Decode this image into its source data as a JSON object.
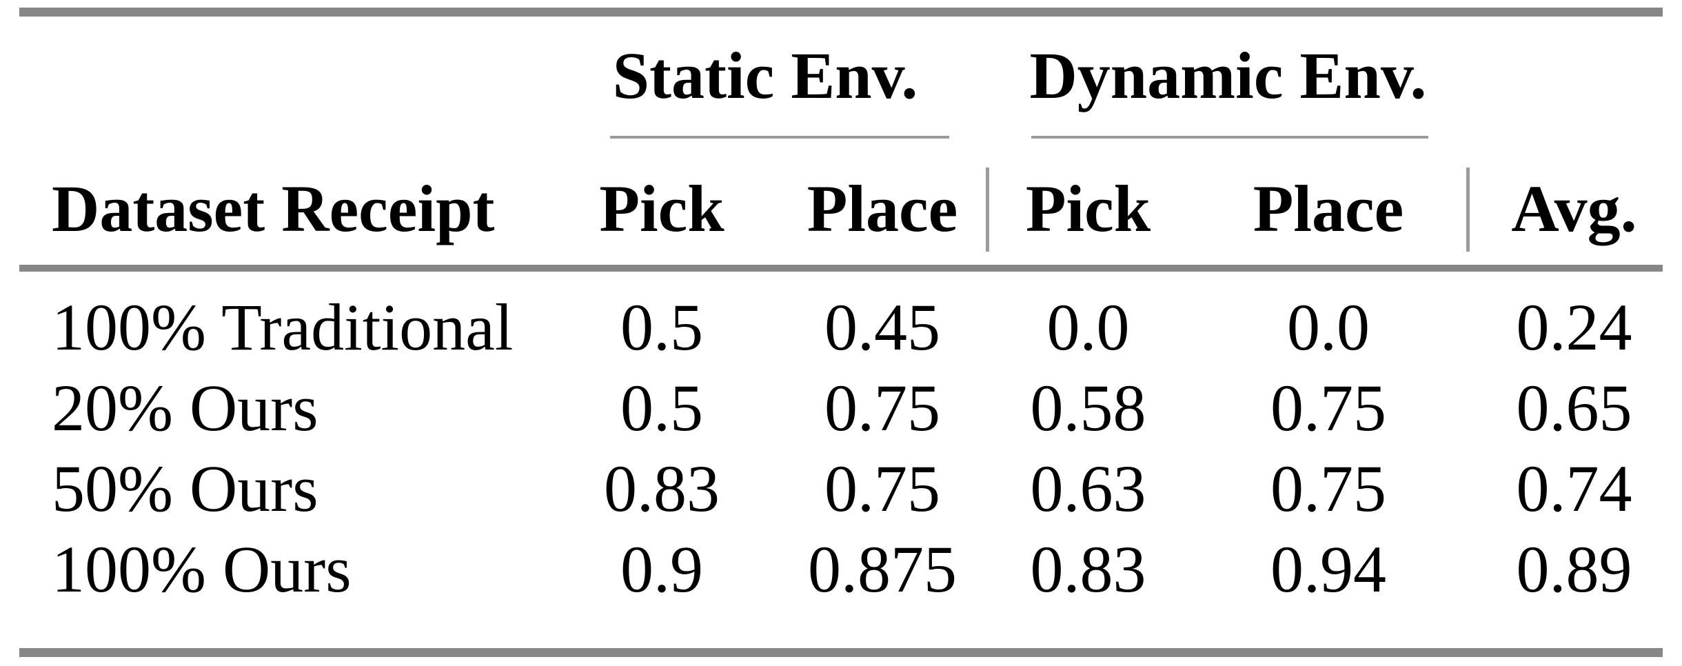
{
  "header": {
    "dataset": "Dataset Receipt",
    "static_group": "Static Env.",
    "dynamic_group": "Dynamic Env.",
    "static_pick": "Pick",
    "static_place": "Place",
    "dynamic_pick": "Pick",
    "dynamic_place": "Place",
    "avg": "Avg."
  },
  "rows": [
    {
      "cells": [
        "100% Traditional",
        "0.5",
        "0.45",
        "0.0",
        "0.0",
        "0.24"
      ]
    },
    {
      "cells": [
        "20% Ours",
        "0.5",
        "0.75",
        "0.58",
        "0.75",
        "0.65"
      ]
    },
    {
      "cells": [
        "50% Ours",
        "0.83",
        "0.75",
        "0.63",
        "0.75",
        "0.74"
      ]
    },
    {
      "cells": [
        "100% Ours",
        "0.9",
        "0.875",
        "0.83",
        "0.94",
        "0.89"
      ]
    }
  ],
  "colors": {
    "rule_heavy": "#868686",
    "rule_light": "#9b9b9b",
    "text": "#000000",
    "background": "#ffffff"
  }
}
